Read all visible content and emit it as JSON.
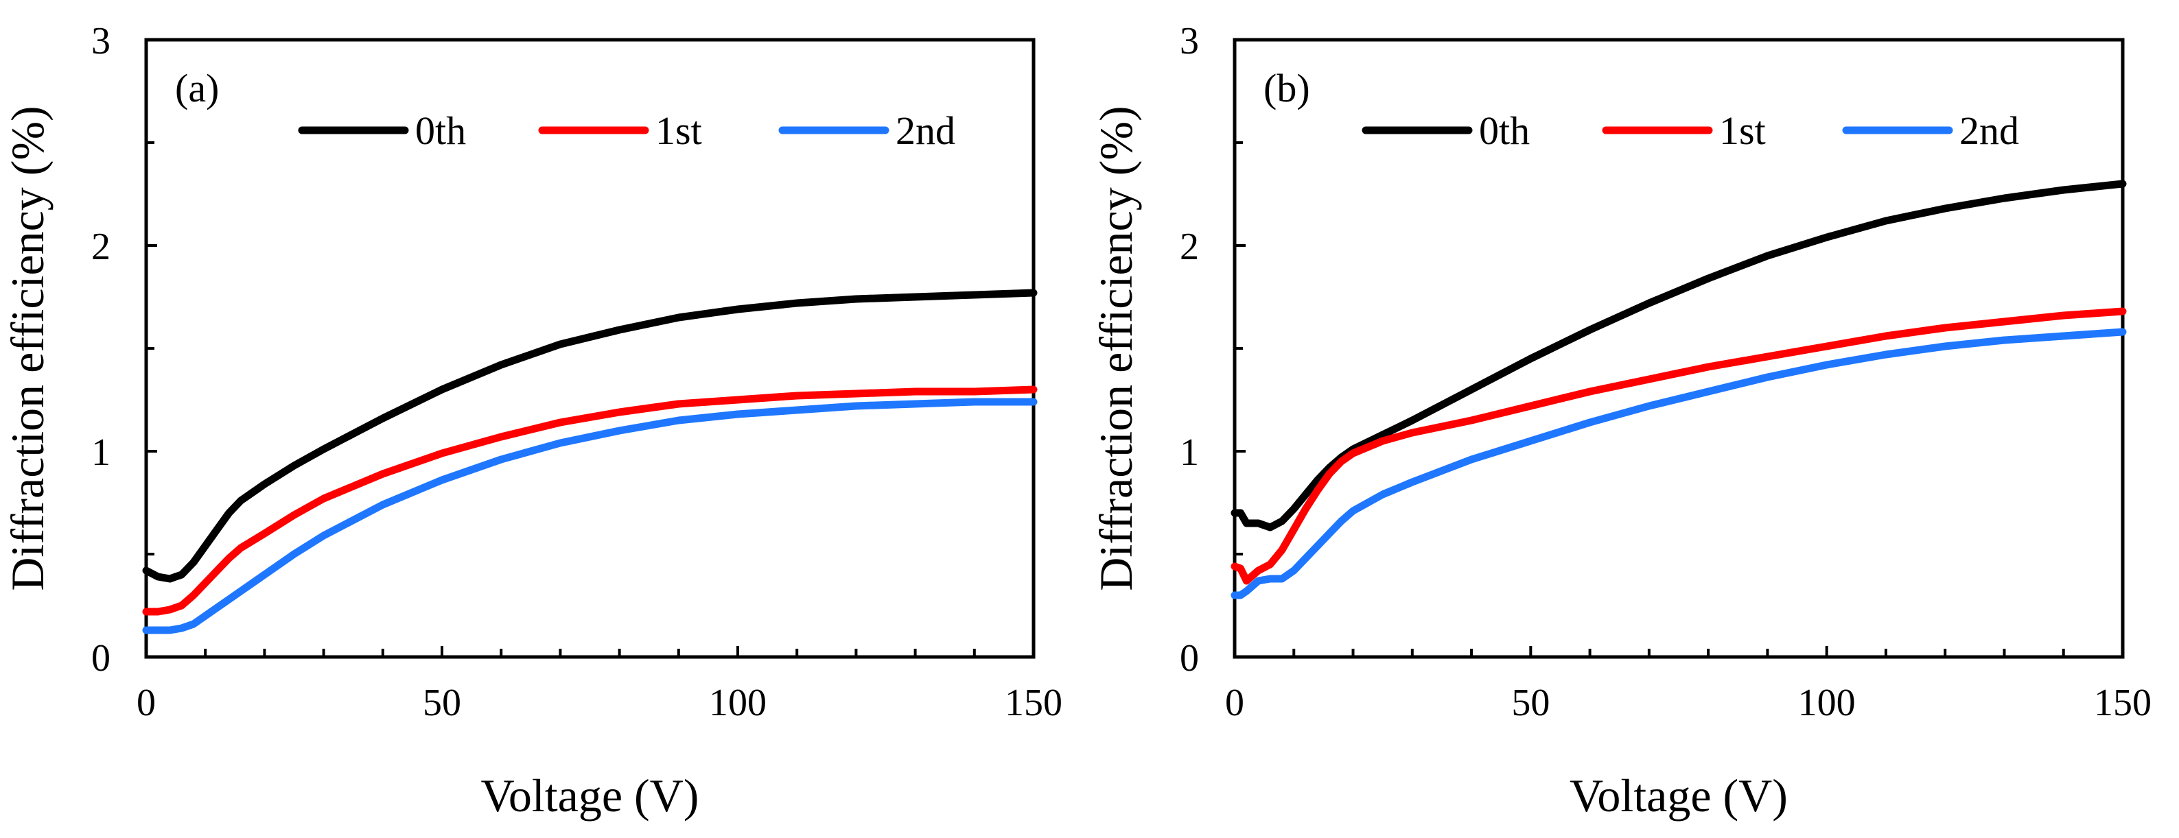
{
  "chart_data": [
    {
      "type": "line",
      "panel_label": "(a)",
      "xlabel": "Voltage (V)",
      "ylabel": "Diffraction efficiency (%)",
      "xlim": [
        0,
        150
      ],
      "ylim": [
        0,
        3
      ],
      "x_ticks": [
        0,
        50,
        100,
        150
      ],
      "y_ticks": [
        0,
        1,
        2,
        3
      ],
      "x_minor_step": 10,
      "y_minor_step": 0.5,
      "grid": false,
      "legend_position": "top-right",
      "series": [
        {
          "name": "0th",
          "color": "#000000",
          "x": [
            0,
            2,
            4,
            6,
            8,
            10,
            12,
            14,
            16,
            20,
            25,
            30,
            40,
            50,
            60,
            70,
            80,
            90,
            100,
            110,
            120,
            130,
            140,
            150
          ],
          "y": [
            0.42,
            0.39,
            0.38,
            0.4,
            0.46,
            0.54,
            0.62,
            0.7,
            0.76,
            0.84,
            0.93,
            1.01,
            1.16,
            1.3,
            1.42,
            1.52,
            1.59,
            1.65,
            1.69,
            1.72,
            1.74,
            1.75,
            1.76,
            1.77
          ]
        },
        {
          "name": "1st",
          "color": "#ff0000",
          "x": [
            0,
            2,
            4,
            6,
            8,
            10,
            12,
            14,
            16,
            20,
            25,
            30,
            40,
            50,
            60,
            70,
            80,
            90,
            100,
            110,
            120,
            130,
            140,
            150
          ],
          "y": [
            0.22,
            0.22,
            0.23,
            0.25,
            0.3,
            0.36,
            0.42,
            0.48,
            0.53,
            0.6,
            0.69,
            0.77,
            0.89,
            0.99,
            1.07,
            1.14,
            1.19,
            1.23,
            1.25,
            1.27,
            1.28,
            1.29,
            1.29,
            1.3
          ]
        },
        {
          "name": "2nd",
          "color": "#1f77ff",
          "x": [
            0,
            2,
            4,
            6,
            8,
            10,
            12,
            14,
            16,
            20,
            25,
            30,
            40,
            50,
            60,
            70,
            80,
            90,
            100,
            110,
            120,
            130,
            140,
            150
          ],
          "y": [
            0.13,
            0.13,
            0.13,
            0.14,
            0.16,
            0.2,
            0.24,
            0.28,
            0.32,
            0.4,
            0.5,
            0.59,
            0.74,
            0.86,
            0.96,
            1.04,
            1.1,
            1.15,
            1.18,
            1.2,
            1.22,
            1.23,
            1.24,
            1.24
          ]
        }
      ]
    },
    {
      "type": "line",
      "panel_label": "(b)",
      "xlabel": "Voltage (V)",
      "ylabel": "Diffraction efficiency (%)",
      "xlim": [
        0,
        150
      ],
      "ylim": [
        0,
        3
      ],
      "x_ticks": [
        0,
        50,
        100,
        150
      ],
      "y_ticks": [
        0,
        1,
        2,
        3
      ],
      "x_minor_step": 10,
      "y_minor_step": 0.5,
      "grid": false,
      "legend_position": "top-right",
      "series": [
        {
          "name": "0th",
          "color": "#000000",
          "x": [
            0,
            1,
            2,
            4,
            6,
            8,
            10,
            12,
            14,
            16,
            18,
            20,
            25,
            30,
            40,
            50,
            60,
            70,
            80,
            90,
            100,
            110,
            120,
            130,
            140,
            150
          ],
          "y": [
            0.7,
            0.7,
            0.65,
            0.65,
            0.63,
            0.66,
            0.72,
            0.79,
            0.86,
            0.92,
            0.97,
            1.01,
            1.08,
            1.15,
            1.3,
            1.45,
            1.59,
            1.72,
            1.84,
            1.95,
            2.04,
            2.12,
            2.18,
            2.23,
            2.27,
            2.3
          ]
        },
        {
          "name": "1st",
          "color": "#ff0000",
          "x": [
            0,
            1,
            2,
            4,
            6,
            8,
            10,
            12,
            14,
            16,
            18,
            20,
            25,
            30,
            40,
            50,
            60,
            70,
            80,
            90,
            100,
            110,
            120,
            130,
            140,
            150
          ],
          "y": [
            0.44,
            0.43,
            0.37,
            0.42,
            0.45,
            0.52,
            0.62,
            0.72,
            0.81,
            0.89,
            0.95,
            0.99,
            1.05,
            1.09,
            1.15,
            1.22,
            1.29,
            1.35,
            1.41,
            1.46,
            1.51,
            1.56,
            1.6,
            1.63,
            1.66,
            1.68
          ]
        },
        {
          "name": "2nd",
          "color": "#1f77ff",
          "x": [
            0,
            1,
            2,
            4,
            6,
            8,
            10,
            12,
            14,
            16,
            18,
            20,
            25,
            30,
            40,
            50,
            60,
            70,
            80,
            90,
            100,
            110,
            120,
            130,
            140,
            150
          ],
          "y": [
            0.3,
            0.3,
            0.32,
            0.37,
            0.38,
            0.38,
            0.42,
            0.48,
            0.54,
            0.6,
            0.66,
            0.71,
            0.79,
            0.85,
            0.96,
            1.05,
            1.14,
            1.22,
            1.29,
            1.36,
            1.42,
            1.47,
            1.51,
            1.54,
            1.56,
            1.58
          ]
        }
      ]
    }
  ]
}
